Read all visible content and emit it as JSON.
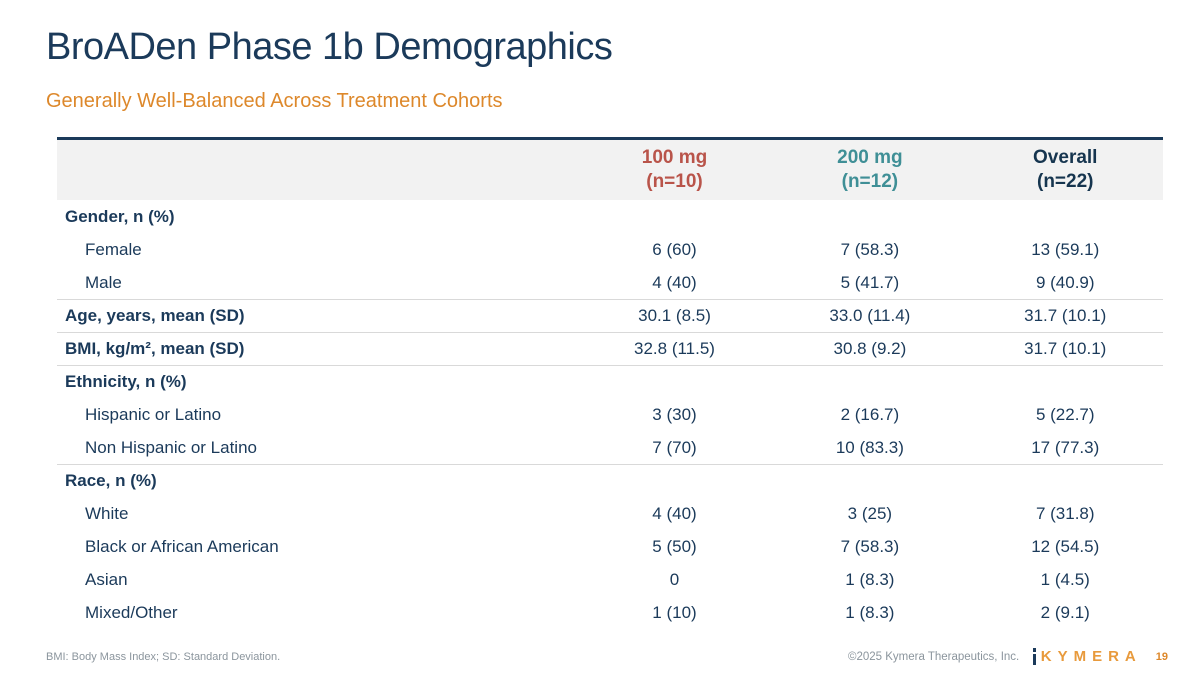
{
  "colors": {
    "title_navy": "#1b3a5a",
    "subtitle_orange": "#dd882b",
    "col_100mg_red": "#b9544a",
    "col_200mg_teal": "#3f8f96",
    "col_overall_navy": "#16354f",
    "header_row_bg": "#f2f2f2",
    "divider_gray": "#d9d9d9",
    "footer_gray": "#8b959d",
    "logo_orange": "#e89a3c"
  },
  "header": {
    "title": "BroADen Phase 1b Demographics",
    "subtitle": "Generally Well-Balanced Across Treatment Cohorts"
  },
  "table": {
    "columns": [
      {
        "label": "100 mg",
        "n": "(n=10)"
      },
      {
        "label": "200 mg",
        "n": "(n=12)"
      },
      {
        "label": "Overall",
        "n": "(n=22)"
      }
    ],
    "rows": [
      {
        "label": "Gender, n (%)",
        "bold": true,
        "indent": false,
        "divider": false,
        "values": [
          "",
          "",
          ""
        ]
      },
      {
        "label": "Female",
        "bold": false,
        "indent": true,
        "divider": false,
        "values": [
          "6 (60)",
          "7 (58.3)",
          "13 (59.1)"
        ]
      },
      {
        "label": "Male",
        "bold": false,
        "indent": true,
        "divider": false,
        "values": [
          "4 (40)",
          "5 (41.7)",
          "9 (40.9)"
        ]
      },
      {
        "label": "Age, years, mean (SD)",
        "bold": true,
        "indent": false,
        "divider": true,
        "values": [
          "30.1 (8.5)",
          "33.0 (11.4)",
          "31.7 (10.1)"
        ]
      },
      {
        "label": "BMI, kg/m², mean (SD)",
        "bold": true,
        "indent": false,
        "divider": true,
        "values": [
          "32.8 (11.5)",
          "30.8 (9.2)",
          "31.7 (10.1)"
        ]
      },
      {
        "label": "Ethnicity, n (%)",
        "bold": true,
        "indent": false,
        "divider": true,
        "values": [
          "",
          "",
          ""
        ]
      },
      {
        "label": "Hispanic or Latino",
        "bold": false,
        "indent": true,
        "divider": false,
        "values": [
          "3 (30)",
          "2 (16.7)",
          "5 (22.7)"
        ]
      },
      {
        "label": "Non Hispanic or Latino",
        "bold": false,
        "indent": true,
        "divider": false,
        "values": [
          "7 (70)",
          "10 (83.3)",
          "17 (77.3)"
        ]
      },
      {
        "label": "Race, n (%)",
        "bold": true,
        "indent": false,
        "divider": true,
        "values": [
          "",
          "",
          ""
        ]
      },
      {
        "label": "White",
        "bold": false,
        "indent": true,
        "divider": false,
        "values": [
          "4 (40)",
          "3 (25)",
          "7 (31.8)"
        ]
      },
      {
        "label": "Black or African American",
        "bold": false,
        "indent": true,
        "divider": false,
        "values": [
          "5 (50)",
          "7 (58.3)",
          "12 (54.5)"
        ]
      },
      {
        "label": "Asian",
        "bold": false,
        "indent": true,
        "divider": false,
        "values": [
          "0",
          "1 (8.3)",
          "1 (4.5)"
        ]
      },
      {
        "label": "Mixed/Other",
        "bold": false,
        "indent": true,
        "divider": false,
        "values": [
          "1 (10)",
          "1 (8.3)",
          "2 (9.1)"
        ]
      }
    ]
  },
  "footer": {
    "abbreviations": "BMI: Body Mass Index; SD: Standard Deviation.",
    "copyright": "©2025 Kymera Therapeutics, Inc.",
    "logo_text": "KYMERA",
    "page_number": "19"
  }
}
